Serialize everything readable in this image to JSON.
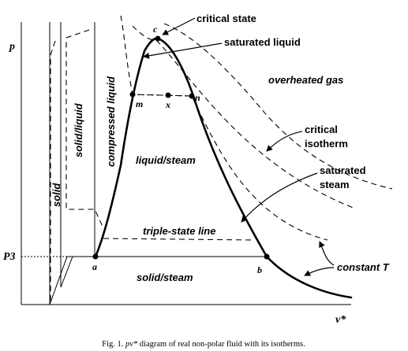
{
  "diagram": {
    "axes": {
      "y_label": "p",
      "x_label": "v*",
      "p3_label": "P3"
    },
    "regions": {
      "solid": "solid",
      "solid_liquid": "solid/liquid",
      "compressed_liquid": "compressed liquid",
      "liquid_steam": "liquid/steam",
      "solid_steam": "solid/steam",
      "overheated_gas": "overheated gas"
    },
    "callouts": {
      "critical_state": "critical state",
      "saturated_liquid": "saturated liquid",
      "critical_isotherm_1": "critical",
      "critical_isotherm_2": "isotherm",
      "saturated_steam_1": "saturated",
      "saturated_steam_2": "steam",
      "triple_state_line": "triple-state line",
      "constant_t": "constant T"
    },
    "points": {
      "c": "c",
      "m": "m",
      "x": "x",
      "n": "n",
      "a": "a",
      "b": "b"
    },
    "caption_prefix": "Fig. 1. ",
    "caption_italic": "pv*",
    "caption_rest": " diagram of real non-polar fluid with its isotherms."
  }
}
